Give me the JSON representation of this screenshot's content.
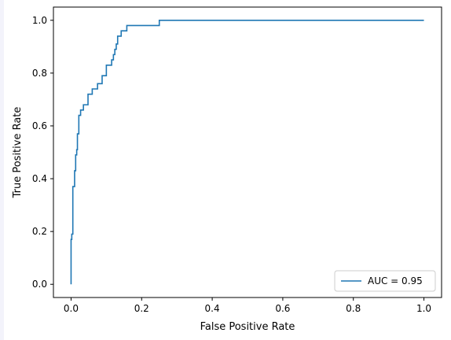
{
  "chart_data": {
    "type": "line",
    "title": "",
    "xlabel": "False Positive Rate",
    "ylabel": "True Positive Rate",
    "xlim": [
      -0.05,
      1.05
    ],
    "ylim": [
      -0.05,
      1.05
    ],
    "xticks": [
      0.0,
      0.2,
      0.4,
      0.6,
      0.8,
      1.0
    ],
    "xtick_labels": [
      "0.0",
      "0.2",
      "0.4",
      "0.6",
      "0.8",
      "1.0"
    ],
    "yticks": [
      0.0,
      0.2,
      0.4,
      0.6,
      0.8,
      1.0
    ],
    "ytick_labels": [
      "0.0",
      "0.2",
      "0.4",
      "0.6",
      "0.8",
      "1.0"
    ],
    "grid": false,
    "legend_position": "lower right",
    "series": [
      {
        "name": "AUC = 0.95",
        "color": "#1f77b4",
        "step": true,
        "x": [
          0.0,
          0.0,
          0.002,
          0.002,
          0.005,
          0.005,
          0.01,
          0.01,
          0.013,
          0.013,
          0.016,
          0.016,
          0.018,
          0.018,
          0.022,
          0.022,
          0.027,
          0.027,
          0.035,
          0.035,
          0.048,
          0.048,
          0.06,
          0.06,
          0.075,
          0.075,
          0.088,
          0.088,
          0.1,
          0.1,
          0.115,
          0.115,
          0.12,
          0.12,
          0.124,
          0.124,
          0.128,
          0.128,
          0.132,
          0.132,
          0.142,
          0.142,
          0.158,
          0.158,
          0.25,
          0.25,
          0.254,
          0.254,
          1.0
        ],
        "y": [
          0.0,
          0.17,
          0.17,
          0.19,
          0.19,
          0.37,
          0.37,
          0.43,
          0.43,
          0.49,
          0.49,
          0.51,
          0.51,
          0.57,
          0.57,
          0.64,
          0.64,
          0.66,
          0.66,
          0.68,
          0.68,
          0.72,
          0.72,
          0.74,
          0.74,
          0.76,
          0.76,
          0.79,
          0.79,
          0.83,
          0.83,
          0.85,
          0.85,
          0.87,
          0.87,
          0.89,
          0.89,
          0.91,
          0.91,
          0.94,
          0.94,
          0.96,
          0.96,
          0.98,
          0.98,
          1.0,
          1.0,
          1.0,
          1.0
        ]
      }
    ]
  }
}
